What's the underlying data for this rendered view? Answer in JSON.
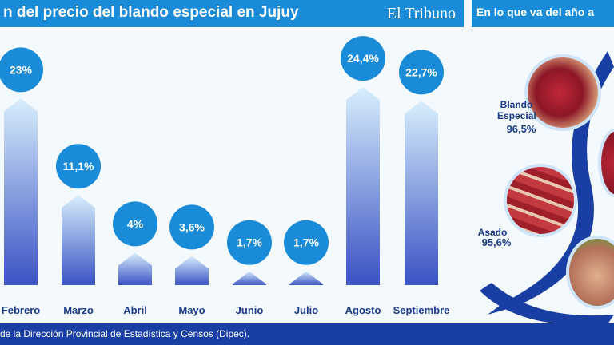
{
  "header": {
    "title": "n del precio del blando especial en Jujuy",
    "brand": "El Tribuno"
  },
  "side": {
    "title": "En lo que va del año a",
    "items": [
      {
        "label": "Blando Especial",
        "value": "96,5%"
      },
      {
        "label": "Asado",
        "value": "95,6%"
      }
    ]
  },
  "footer": {
    "source": "de la Dirección Provincial de Estadística y Censos (Dipec)."
  },
  "colors": {
    "accent": "#1a8bd9",
    "bar_dark": "#3a52c4",
    "bar_light": "#d8eefc",
    "footer": "#1a3fa4",
    "text": "#1a3a8a"
  },
  "chart_data": {
    "type": "bar",
    "categories": [
      "Febrero",
      "Marzo",
      "Abril",
      "Mayo",
      "Junio",
      "Julio",
      "Agosto",
      "Septiembre"
    ],
    "values": [
      23,
      11.1,
      4,
      3.6,
      1.7,
      1.7,
      24.4,
      22.7
    ],
    "labels": [
      "23%",
      "11,1%",
      "4%",
      "3,6%",
      "1,7%",
      "1,7%",
      "24,4%",
      "22,7%"
    ],
    "ylim": [
      0,
      25
    ]
  }
}
